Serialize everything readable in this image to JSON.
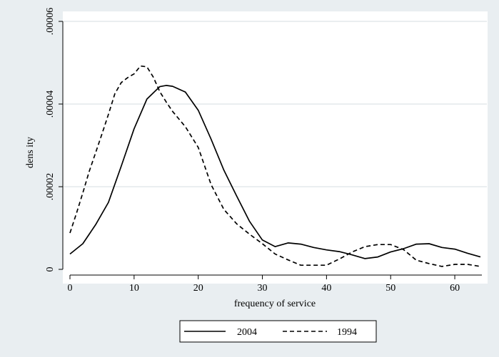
{
  "chart_data": {
    "type": "line",
    "xlabel": "frequency of service",
    "ylabel": "dens ity",
    "xlim": [
      0,
      64
    ],
    "ylim": [
      0,
      6e-05
    ],
    "x_ticks": [
      0,
      10,
      20,
      30,
      40,
      50,
      60
    ],
    "x_tick_labels": [
      "0",
      "10",
      "20",
      "30",
      "40",
      "50",
      "60"
    ],
    "y_ticks": [
      0,
      2e-05,
      4e-05,
      6e-05
    ],
    "y_tick_labels": [
      "0",
      ".00002",
      ".00004",
      ".00006"
    ],
    "grid": "horizontal",
    "legend_position": "bottom-center",
    "series": [
      {
        "name": "2004",
        "style": "solid",
        "x": [
          0,
          2,
          4,
          6,
          8,
          10,
          12,
          14,
          15,
          16,
          18,
          20,
          22,
          24,
          26,
          28,
          30,
          32,
          34,
          36,
          38,
          40,
          42,
          44,
          46,
          48,
          50,
          52,
          54,
          56,
          58,
          60,
          62,
          64
        ],
        "y": [
          3.7e-06,
          6.2e-06,
          1.08e-05,
          1.62e-05,
          2.5e-05,
          3.4e-05,
          4.12e-05,
          4.42e-05,
          4.45e-05,
          4.43e-05,
          4.29e-05,
          3.85e-05,
          3.15e-05,
          2.4e-05,
          1.77e-05,
          1.16e-05,
          7.1e-06,
          5.5e-06,
          6.4e-06,
          6.1e-06,
          5.3e-06,
          4.7e-06,
          4.3e-06,
          3.5e-06,
          2.6e-06,
          3e-06,
          4.2e-06,
          5e-06,
          6.1e-06,
          6.2e-06,
          5.3e-06,
          4.9e-06,
          3.9e-06,
          3e-06
        ]
      },
      {
        "name": "1994",
        "style": "dashed",
        "x": [
          0,
          1,
          2,
          3,
          4,
          5,
          6,
          7,
          8,
          9,
          10,
          11,
          12,
          13,
          14,
          15,
          16,
          18,
          20,
          22,
          24,
          26,
          28,
          30,
          32,
          34,
          36,
          38,
          40,
          42,
          44,
          46,
          48,
          50,
          52,
          54,
          56,
          58,
          60,
          62,
          64
        ],
        "y": [
          8.8e-06,
          1.35e-05,
          1.85e-05,
          2.37e-05,
          2.82e-05,
          3.28e-05,
          3.75e-05,
          4.25e-05,
          4.52e-05,
          4.64e-05,
          4.73e-05,
          4.92e-05,
          4.9e-05,
          4.65e-05,
          4.3e-05,
          4.05e-05,
          3.82e-05,
          3.45e-05,
          2.95e-05,
          2.05e-05,
          1.45e-05,
          1.1e-05,
          8.5e-06,
          6.2e-06,
          3.7e-06,
          2.3e-06,
          1e-06,
          1e-06,
          1e-06,
          2.5e-06,
          4.2e-06,
          5.5e-06,
          6e-06,
          6e-06,
          4.8e-06,
          2.2e-06,
          1.4e-06,
          7e-07,
          1.2e-06,
          1.2e-06,
          7e-07
        ]
      }
    ]
  }
}
